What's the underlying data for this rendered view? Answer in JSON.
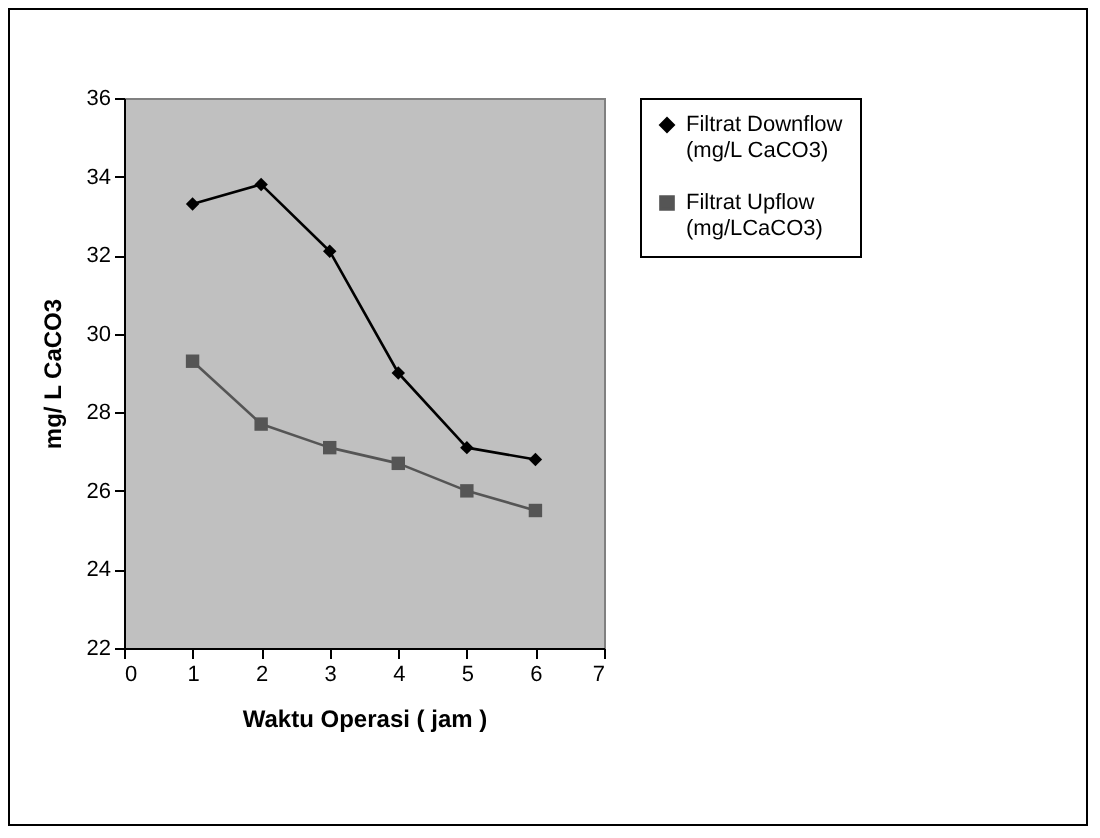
{
  "chart_data": {
    "type": "line",
    "xlabel": "Waktu Operasi ( jam )",
    "ylabel": "mg/ L CaCO3",
    "x": [
      1,
      2,
      3,
      4,
      5,
      6
    ],
    "series": [
      {
        "name": "Filtrat Downflow (mg/L CaCO3)",
        "color": "#000000",
        "marker": "diamond",
        "values": [
          33.3,
          33.8,
          32.1,
          29.0,
          27.1,
          26.8
        ]
      },
      {
        "name": "Filtrat Upflow (mg/LCaCO3)",
        "color": "#555555",
        "marker": "square",
        "values": [
          29.3,
          27.7,
          27.1,
          26.7,
          26.0,
          25.5
        ]
      }
    ],
    "xlim": [
      0,
      7
    ],
    "xticks": [
      0,
      1,
      2,
      3,
      4,
      5,
      6,
      7
    ],
    "ylim": [
      22,
      36
    ],
    "yticks": [
      22,
      24,
      26,
      28,
      30,
      32,
      34,
      36
    ],
    "grid": false,
    "legend": "right",
    "line_style": "solid"
  }
}
